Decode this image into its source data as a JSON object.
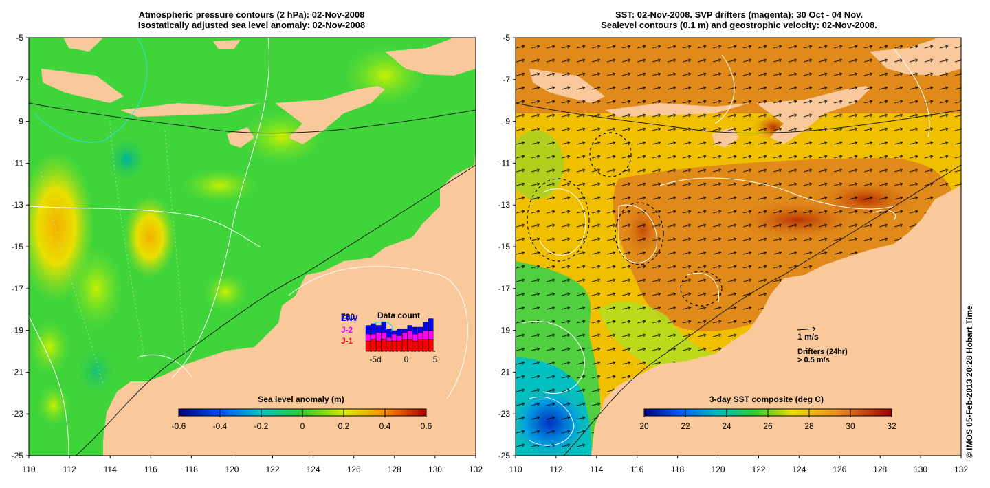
{
  "left_panel": {
    "title_line1": "Atmospheric pressure contours (2 hPa): 02-Nov-2008",
    "title_line2": "Isostatically adjusted sea level anomaly: 02-Nov-2008",
    "colorbar_label": "Sea level anomaly (m)",
    "colorbar_ticks": [
      "-0.6",
      "-0.4",
      "-0.2",
      "0",
      "0.2",
      "0.4",
      "0.6"
    ],
    "inset": {
      "title": "Data count",
      "max_label": "700",
      "legend": [
        {
          "name": "ENV",
          "color": "#0000ff"
        },
        {
          "name": "J-2",
          "color": "#ff00ff"
        },
        {
          "name": "J-1",
          "color": "#ff0000"
        }
      ],
      "x_ticks": [
        "-5d",
        "0",
        "5"
      ],
      "bars": [
        {
          "j1": 0.3,
          "j2": 0.2,
          "env": 0.25
        },
        {
          "j1": 0.35,
          "j2": 0.15,
          "env": 0.3
        },
        {
          "j1": 0.3,
          "j2": 0.25,
          "env": 0.2
        },
        {
          "j1": 0.35,
          "j2": 0.2,
          "env": 0.3
        },
        {
          "j1": 0.3,
          "j2": 0.1,
          "env": 0.25
        },
        {
          "j1": 0.3,
          "j2": 0.2,
          "env": 0.1
        },
        {
          "j1": 0.3,
          "j2": 0.15,
          "env": 0.2
        },
        {
          "j1": 0.35,
          "j2": 0.2,
          "env": 0.1
        },
        {
          "j1": 0.35,
          "j2": 0.25,
          "env": 0.15
        },
        {
          "j1": 0.3,
          "j2": 0.2,
          "env": 0.2
        },
        {
          "j1": 0.35,
          "j2": 0.2,
          "env": 0.15
        },
        {
          "j1": 0.35,
          "j2": 0.25,
          "env": 0.25
        },
        {
          "j1": 0.35,
          "j2": 0.25,
          "env": 0.35
        }
      ]
    }
  },
  "right_panel": {
    "title_line1": "SST: 02-Nov-2008. SVP drifters (magenta): 30 Oct - 04 Nov.",
    "title_line2": "Sealevel contours (0.1 m) and geostrophic velocity: 02-Nov-2008.",
    "colorbar_label": "3-day SST composite (deg C)",
    "colorbar_ticks": [
      "20",
      "22",
      "24",
      "26",
      "28",
      "30",
      "32"
    ],
    "velocity_scale_label": "1 m/s",
    "drifter_label": "Drifters (24hr)",
    "drifter_speed_label": "> 0.5 m/s"
  },
  "axes": {
    "lon_ticks": [
      "110",
      "112",
      "114",
      "116",
      "118",
      "120",
      "122",
      "124",
      "126",
      "128",
      "130",
      "132"
    ],
    "lat_ticks": [
      "-5",
      "-7",
      "-9",
      "-11",
      "-13",
      "-15",
      "-17",
      "-19",
      "-21",
      "-23",
      "-25"
    ]
  },
  "credit": "© IMOS 05-Feb-2013 20:28 Hobart Time",
  "colors": {
    "land": "#f9c99b",
    "sla_ocean": "#3fd43a",
    "sst_warm": "#e08a1a",
    "sst_mid": "#f0c000"
  }
}
